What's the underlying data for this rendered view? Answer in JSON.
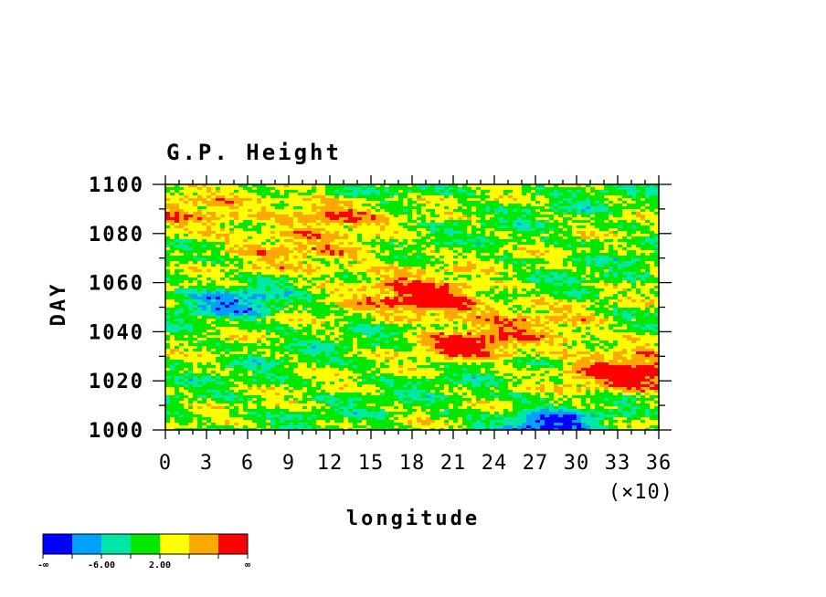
{
  "chart_data": {
    "type": "heatmap",
    "title": "G.P. Height",
    "xlabel": "longitude",
    "ylabel": "DAY",
    "x_multiplier": "(×10)",
    "xlim": [
      0,
      36
    ],
    "ylim": [
      1000,
      1100
    ],
    "x_ticks": [
      "0",
      "3",
      "6",
      "9",
      "12",
      "15",
      "18",
      "21",
      "24",
      "27",
      "30",
      "33",
      "36"
    ],
    "y_ticks": [
      "1000",
      "1020",
      "1040",
      "1060",
      "1080",
      "1100"
    ],
    "colorbar": {
      "colors": [
        "#0000ff",
        "#00a0ff",
        "#00e8a8",
        "#00e800",
        "#ffff00",
        "#ffa800",
        "#ff0000"
      ],
      "labels": [
        "-∞",
        "-6.00",
        "2.00",
        "∞"
      ]
    },
    "description_regions": [
      {
        "x": 12,
        "y": 1088,
        "level": 6
      },
      {
        "x": 19,
        "y": 1052,
        "level": 6
      },
      {
        "x": 22,
        "y": 1034,
        "level": 6
      },
      {
        "x": 34,
        "y": 1022,
        "level": 6
      },
      {
        "x": 5,
        "y": 1052,
        "level": 1
      },
      {
        "x": 28,
        "y": 1002,
        "level": 0
      }
    ]
  }
}
